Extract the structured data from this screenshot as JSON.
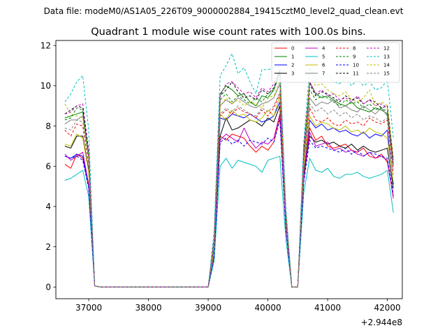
{
  "header": {
    "data_file": "Data file: modeM0/AS1A05_226T09_9000002884_19415cztM0_level2_quad_clean.evt"
  },
  "chart_data": {
    "type": "line",
    "title": "Quadrant 1 module wise count rates with 100.0s bins.",
    "xlabel": "",
    "ylabel": "",
    "x_offset_label": "+2.944e8",
    "xlim": [
      36450,
      42250
    ],
    "ylim": [
      -0.58,
      12.25
    ],
    "xticks": [
      37000,
      38000,
      39000,
      40000,
      41000,
      42000
    ],
    "xtick_labels": [
      "37000",
      "38000",
      "39000",
      "40000",
      "41000",
      "42000"
    ],
    "yticks": [
      0,
      2,
      4,
      6,
      8,
      10,
      12
    ],
    "ytick_labels": [
      "0",
      "2",
      "4",
      "6",
      "8",
      "10",
      "12"
    ],
    "grid": false,
    "legend_position": "top-right",
    "legend_columns": 4,
    "x": [
      36600,
      36700,
      36800,
      36900,
      37000,
      37100,
      37200,
      37300,
      37400,
      37500,
      37600,
      37700,
      37800,
      37900,
      38000,
      38100,
      38200,
      38300,
      38400,
      38500,
      38600,
      38700,
      38800,
      38900,
      39000,
      39100,
      39200,
      39300,
      39400,
      39500,
      39600,
      39700,
      39800,
      39900,
      40000,
      40100,
      40200,
      40300,
      40400,
      40500,
      40600,
      40700,
      40800,
      40900,
      41000,
      41100,
      41200,
      41300,
      41400,
      41500,
      41600,
      41700,
      41800,
      41900,
      42000,
      42100
    ],
    "series": [
      {
        "name": "0",
        "color": "#ff0000",
        "dash": false,
        "values": [
          6.1,
          5.9,
          6.6,
          6.4,
          5.0,
          0.05,
          0,
          0,
          0,
          0,
          0,
          0,
          0,
          0,
          0,
          0,
          0,
          0,
          0,
          0,
          0,
          0,
          0,
          0,
          0,
          1.5,
          7.5,
          7.3,
          7.6,
          7.5,
          7.4,
          7.0,
          6.7,
          7.0,
          6.8,
          7.2,
          8.5,
          3.0,
          0,
          0,
          5.5,
          7.9,
          7.3,
          7.5,
          7.0,
          6.9,
          7.0,
          7.1,
          6.8,
          6.7,
          6.9,
          6.5,
          6.4,
          6.6,
          6.2,
          4.5
        ]
      },
      {
        "name": "1",
        "color": "#008000",
        "dash": false,
        "values": [
          8.4,
          8.5,
          8.6,
          8.7,
          6.5,
          0.05,
          0,
          0,
          0,
          0,
          0,
          0,
          0,
          0,
          0,
          0,
          0,
          0,
          0,
          0,
          0,
          0,
          0,
          0,
          0,
          2.3,
          9.6,
          10.0,
          9.8,
          9.5,
          9.6,
          9.2,
          9.0,
          9.5,
          9.4,
          9.8,
          10.8,
          3.6,
          0,
          0,
          6.5,
          10.2,
          9.6,
          9.4,
          9.5,
          9.3,
          9.1,
          9.0,
          9.2,
          8.9,
          8.8,
          8.7,
          8.9,
          8.8,
          8.6,
          6.0
        ]
      },
      {
        "name": "2",
        "color": "#0000ff",
        "dash": false,
        "values": [
          6.5,
          6.4,
          6.6,
          6.5,
          5.0,
          0.05,
          0,
          0,
          0,
          0,
          0,
          0,
          0,
          0,
          0,
          0,
          0,
          0,
          0,
          0,
          0,
          0,
          0,
          0,
          0,
          1.6,
          8.4,
          8.3,
          8.6,
          8.5,
          8.4,
          8.6,
          8.4,
          8.2,
          8.3,
          8.5,
          9.2,
          3.1,
          0,
          0,
          5.6,
          8.3,
          7.9,
          8.1,
          7.8,
          7.9,
          7.7,
          7.8,
          7.6,
          7.5,
          7.7,
          7.4,
          7.6,
          7.5,
          7.8,
          5.1
        ]
      },
      {
        "name": "3",
        "color": "#000000",
        "dash": false,
        "values": [
          7.0,
          6.9,
          7.5,
          7.5,
          5.8,
          0.05,
          0,
          0,
          0,
          0,
          0,
          0,
          0,
          0,
          0,
          0,
          0,
          0,
          0,
          0,
          0,
          0,
          0,
          0,
          0,
          1.9,
          7.5,
          8.4,
          7.8,
          7.9,
          8.1,
          8.3,
          8.2,
          8.0,
          8.4,
          8.2,
          9.0,
          3.2,
          0,
          0,
          5.5,
          7.5,
          7.2,
          7.3,
          7.1,
          7.2,
          7.0,
          6.9,
          7.1,
          6.8,
          7.0,
          6.8,
          6.7,
          6.8,
          6.9,
          4.9
        ]
      },
      {
        "name": "4",
        "color": "#c000c0",
        "dash": false,
        "values": [
          6.6,
          6.3,
          6.5,
          6.7,
          5.1,
          0.05,
          0,
          0,
          0,
          0,
          0,
          0,
          0,
          0,
          0,
          0,
          0,
          0,
          0,
          0,
          0,
          0,
          0,
          0,
          0,
          1.5,
          7.3,
          7.6,
          7.4,
          7.2,
          7.9,
          7.3,
          6.9,
          7.2,
          7.1,
          7.4,
          8.6,
          3.0,
          0,
          0,
          5.3,
          7.7,
          7.0,
          7.1,
          7.2,
          6.8,
          6.9,
          6.7,
          6.8,
          6.6,
          6.5,
          6.7,
          6.4,
          6.5,
          6.3,
          4.4
        ]
      },
      {
        "name": "5",
        "color": "#00bfbf",
        "dash": false,
        "values": [
          5.3,
          5.4,
          5.6,
          5.8,
          4.5,
          0.05,
          0,
          0,
          0,
          0,
          0,
          0,
          0,
          0,
          0,
          0,
          0,
          0,
          0,
          0,
          0,
          0,
          0,
          0,
          0,
          1.3,
          6.0,
          6.4,
          5.9,
          6.3,
          6.2,
          6.1,
          6.0,
          5.7,
          6.3,
          6.4,
          6.5,
          2.4,
          0,
          0,
          4.7,
          6.4,
          5.8,
          5.7,
          5.9,
          5.5,
          5.4,
          5.6,
          5.6,
          5.7,
          5.5,
          5.4,
          5.5,
          5.6,
          5.8,
          3.7
        ]
      },
      {
        "name": "6",
        "color": "#bfbf00",
        "dash": false,
        "values": [
          7.1,
          7.0,
          7.6,
          7.4,
          5.7,
          0.05,
          0,
          0,
          0,
          0,
          0,
          0,
          0,
          0,
          0,
          0,
          0,
          0,
          0,
          0,
          0,
          0,
          0,
          0,
          0,
          1.8,
          8.6,
          8.3,
          8.8,
          8.5,
          8.6,
          8.3,
          8.2,
          8.4,
          8.8,
          8.5,
          9.5,
          3.3,
          0,
          0,
          5.8,
          8.5,
          8.0,
          8.2,
          8.1,
          7.9,
          7.8,
          8.0,
          7.7,
          7.8,
          7.6,
          7.9,
          7.7,
          7.6,
          7.4,
          5.2
        ]
      },
      {
        "name": "7",
        "color": "#808080",
        "dash": false,
        "values": [
          8.1,
          8.3,
          8.3,
          8.5,
          6.4,
          0.05,
          0,
          0,
          0,
          0,
          0,
          0,
          0,
          0,
          0,
          0,
          0,
          0,
          0,
          0,
          0,
          0,
          0,
          0,
          0,
          2.2,
          9.0,
          9.3,
          9.1,
          9.4,
          9.2,
          9.0,
          8.9,
          9.1,
          9.2,
          9.4,
          10.1,
          3.5,
          0,
          0,
          6.3,
          9.4,
          9.0,
          9.2,
          9.1,
          9.3,
          8.9,
          9.0,
          8.8,
          8.7,
          9.0,
          8.8,
          8.6,
          8.9,
          8.5,
          6.0
        ]
      },
      {
        "name": "8",
        "color": "#ff0000",
        "dash": true,
        "values": [
          7.8,
          7.5,
          8.1,
          8.0,
          6.1,
          0.05,
          0,
          0,
          0,
          0,
          0,
          0,
          0,
          0,
          0,
          0,
          0,
          0,
          0,
          0,
          0,
          0,
          0,
          0,
          0,
          2.0,
          8.5,
          8.8,
          8.6,
          8.9,
          8.7,
          8.6,
          8.4,
          8.8,
          8.5,
          8.9,
          9.6,
          3.4,
          0,
          0,
          6.1,
          8.9,
          8.3,
          8.2,
          8.4,
          8.1,
          8.0,
          8.3,
          8.1,
          8.2,
          8.0,
          8.4,
          8.2,
          8.1,
          8.3,
          5.6
        ]
      },
      {
        "name": "9",
        "color": "#008000",
        "dash": true,
        "values": [
          8.3,
          8.4,
          8.9,
          8.8,
          6.6,
          0.05,
          0,
          0,
          0,
          0,
          0,
          0,
          0,
          0,
          0,
          0,
          0,
          0,
          0,
          0,
          0,
          0,
          0,
          0,
          0,
          2.3,
          9.3,
          9.6,
          9.2,
          9.5,
          9.3,
          9.1,
          9.4,
          9.2,
          9.6,
          9.8,
          10.6,
          3.7,
          0,
          0,
          6.6,
          9.8,
          9.3,
          9.5,
          9.4,
          9.2,
          9.0,
          9.3,
          9.1,
          9.2,
          8.9,
          9.1,
          8.8,
          8.9,
          8.7,
          6.1
        ]
      },
      {
        "name": "10",
        "color": "#0000ff",
        "dash": true,
        "values": [
          6.5,
          6.4,
          6.5,
          6.3,
          4.9,
          0.05,
          0,
          0,
          0,
          0,
          0,
          0,
          0,
          0,
          0,
          0,
          0,
          0,
          0,
          0,
          0,
          0,
          0,
          0,
          0,
          1.5,
          7.2,
          7.4,
          7.1,
          7.3,
          7.0,
          7.3,
          7.2,
          7.1,
          7.4,
          7.2,
          8.3,
          2.9,
          0,
          0,
          5.2,
          7.3,
          6.9,
          7.0,
          6.9,
          6.8,
          6.7,
          6.9,
          6.6,
          6.8,
          6.5,
          6.7,
          6.6,
          6.5,
          6.4,
          4.6
        ]
      },
      {
        "name": "11",
        "color": "#000000",
        "dash": true,
        "values": [
          8.6,
          8.8,
          9.0,
          8.9,
          6.7,
          0.05,
          0,
          0,
          0,
          0,
          0,
          0,
          0,
          0,
          0,
          0,
          0,
          0,
          0,
          0,
          0,
          0,
          0,
          0,
          0,
          2.4,
          9.5,
          9.8,
          10.2,
          9.7,
          9.4,
          9.5,
          9.3,
          9.8,
          9.6,
          9.9,
          10.7,
          3.8,
          0,
          0,
          6.8,
          10.1,
          9.5,
          9.7,
          9.6,
          9.4,
          9.2,
          9.5,
          9.3,
          9.4,
          9.1,
          9.3,
          9.2,
          8.9,
          9.0,
          6.3
        ]
      },
      {
        "name": "12",
        "color": "#c000c0",
        "dash": true,
        "values": [
          8.6,
          8.7,
          9.0,
          9.1,
          6.8,
          0.05,
          0,
          0,
          0,
          0,
          0,
          0,
          0,
          0,
          0,
          0,
          0,
          0,
          0,
          0,
          0,
          0,
          0,
          0,
          0,
          2.4,
          9.5,
          10.1,
          10.2,
          9.9,
          9.6,
          9.7,
          9.4,
          9.9,
          9.7,
          10.1,
          10.8,
          3.8,
          0,
          0,
          6.9,
          10.2,
          9.6,
          9.8,
          9.5,
          9.6,
          9.3,
          9.4,
          9.2,
          9.5,
          9.1,
          9.3,
          9.0,
          9.1,
          8.9,
          6.2
        ]
      },
      {
        "name": "13",
        "color": "#00bfbf",
        "dash": true,
        "values": [
          9.2,
          9.6,
          10.2,
          10.5,
          7.8,
          0.05,
          0,
          0,
          0,
          0,
          0,
          0,
          0,
          0,
          0,
          0,
          0,
          0,
          0,
          0,
          0,
          0,
          0,
          0,
          0,
          2.8,
          10.5,
          11.0,
          11.6,
          10.6,
          10.9,
          10.2,
          9.6,
          10.8,
          10.8,
          10.9,
          11.0,
          4.0,
          0,
          0,
          7.2,
          10.9,
          10.3,
          10.4,
          10.6,
          10.2,
          10.1,
          10.4,
          10.0,
          10.3,
          10.0,
          10.2,
          9.8,
          9.9,
          10.3,
          7.4
        ]
      },
      {
        "name": "14",
        "color": "#bfbf00",
        "dash": true,
        "values": [
          9.1,
          8.6,
          8.5,
          8.4,
          6.4,
          0.05,
          0,
          0,
          0,
          0,
          0,
          0,
          0,
          0,
          0,
          0,
          0,
          0,
          0,
          0,
          0,
          0,
          0,
          0,
          0,
          2.2,
          9.0,
          9.4,
          9.1,
          9.3,
          9.0,
          9.2,
          9.1,
          8.9,
          9.4,
          9.5,
          10.2,
          3.6,
          0,
          0,
          6.4,
          10.4,
          10.0,
          10.1,
          9.8,
          9.6,
          9.5,
          9.7,
          9.3,
          9.2,
          9.4,
          9.8,
          9.0,
          9.2,
          9.0,
          6.4
        ]
      },
      {
        "name": "15",
        "color": "#808080",
        "dash": true,
        "values": [
          7.9,
          7.8,
          8.3,
          8.2,
          6.2,
          0.05,
          0,
          0,
          0,
          0,
          0,
          0,
          0,
          0,
          0,
          0,
          0,
          0,
          0,
          0,
          0,
          0,
          0,
          0,
          0,
          2.0,
          8.6,
          8.9,
          8.7,
          9.0,
          8.8,
          8.6,
          8.5,
          8.9,
          8.7,
          9.0,
          9.7,
          3.4,
          0,
          0,
          6.2,
          9.1,
          8.7,
          8.9,
          8.6,
          8.8,
          8.5,
          8.7,
          8.4,
          8.6,
          8.3,
          8.5,
          8.4,
          8.2,
          8.4,
          5.8
        ]
      }
    ]
  }
}
